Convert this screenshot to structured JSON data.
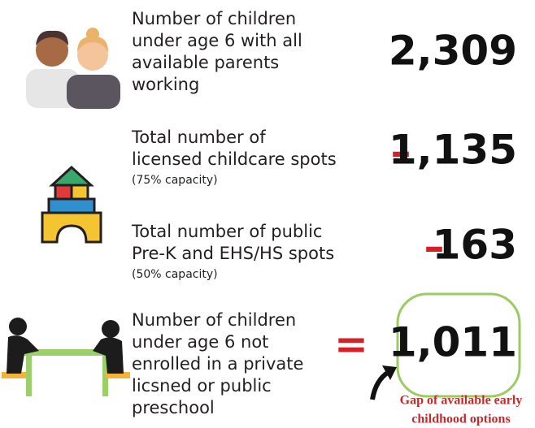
{
  "rows": [
    {
      "label_lines": [
        "Number of children",
        "under age 6 with all",
        "available parents",
        "working"
      ],
      "value": "2,309"
    },
    {
      "label_lines": [
        "Total number of",
        "licensed childcare spots"
      ],
      "note": "(75% capacity)",
      "operator": "–",
      "value": "1,135"
    },
    {
      "label_lines": [
        "Total number of public",
        "Pre-K and EHS/HS spots"
      ],
      "note": "(50% capacity)",
      "operator": "–",
      "value": "163"
    },
    {
      "label_lines": [
        "Number of children",
        "under age 6 not",
        "enrolled in a private",
        "licsned or public",
        "preschool"
      ],
      "operator": "=",
      "value": "1,011"
    }
  ],
  "annotation_lines": [
    "Gap of available early",
    "childhood options"
  ]
}
